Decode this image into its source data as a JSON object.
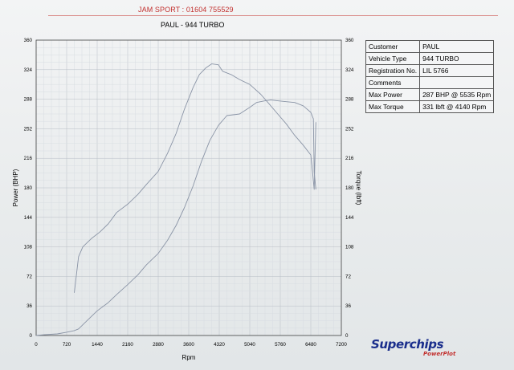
{
  "header": {
    "company": "JAM SPORT : 01604 755529"
  },
  "chart_data": {
    "type": "line",
    "title": "PAUL - 944 TURBO",
    "xlabel": "Rpm",
    "ylabel": "Power (BHP)",
    "y2label": "Torque (lbft)",
    "xlim": [
      0,
      7200
    ],
    "ylim": [
      0,
      360
    ],
    "xticks": [
      0,
      720,
      1440,
      2160,
      2880,
      3600,
      4320,
      5040,
      5760,
      6480,
      7200
    ],
    "yticks": [
      0,
      36,
      72,
      108,
      144,
      180,
      216,
      252,
      288,
      324,
      360
    ],
    "grid": true,
    "series": [
      {
        "name": "Power",
        "color": "#8a94a6",
        "x": [
          0,
          200,
          500,
          720,
          900,
          1000,
          1200,
          1440,
          1700,
          1900,
          2160,
          2400,
          2600,
          2880,
          3100,
          3300,
          3500,
          3700,
          3900,
          4100,
          4300,
          4500,
          4800,
          5040,
          5200,
          5400,
          5535,
          5700,
          5900,
          6100,
          6300,
          6480,
          6540,
          6560,
          6600
        ],
        "y": [
          0,
          1,
          2,
          4,
          6,
          8,
          18,
          30,
          40,
          50,
          62,
          74,
          86,
          100,
          116,
          134,
          156,
          182,
          212,
          238,
          256,
          268,
          270,
          278,
          284,
          286,
          287,
          286,
          285,
          284,
          280,
          272,
          264,
          200,
          178
        ]
      },
      {
        "name": "Torque",
        "color": "#8a94a6",
        "x": [
          900,
          1000,
          1100,
          1300,
          1500,
          1700,
          1900,
          2160,
          2400,
          2600,
          2880,
          3100,
          3300,
          3500,
          3700,
          3850,
          4000,
          4140,
          4300,
          4400,
          4600,
          4800,
          5040,
          5300,
          5500,
          5700,
          5900,
          6100,
          6300,
          6480,
          6520,
          6560,
          6600
        ],
        "y": [
          52,
          96,
          108,
          118,
          126,
          136,
          150,
          160,
          172,
          184,
          200,
          222,
          246,
          276,
          302,
          318,
          326,
          331,
          330,
          322,
          318,
          312,
          306,
          294,
          282,
          270,
          258,
          244,
          232,
          220,
          200,
          178,
          260
        ]
      }
    ],
    "table": [
      {
        "label": "Customer",
        "value": "PAUL"
      },
      {
        "label": "Vehicle Type",
        "value": "944 TURBO"
      },
      {
        "label": "Registration No.",
        "value": "LIL 5766"
      },
      {
        "label": "Comments",
        "value": ""
      },
      {
        "label": "Max Power",
        "value": "287 BHP @ 5535 Rpm"
      },
      {
        "label": "Max Torque",
        "value": "331 lbft @ 4140 Rpm"
      }
    ]
  },
  "logo": {
    "brand": "Superchips",
    "product": "PowerPlot"
  }
}
